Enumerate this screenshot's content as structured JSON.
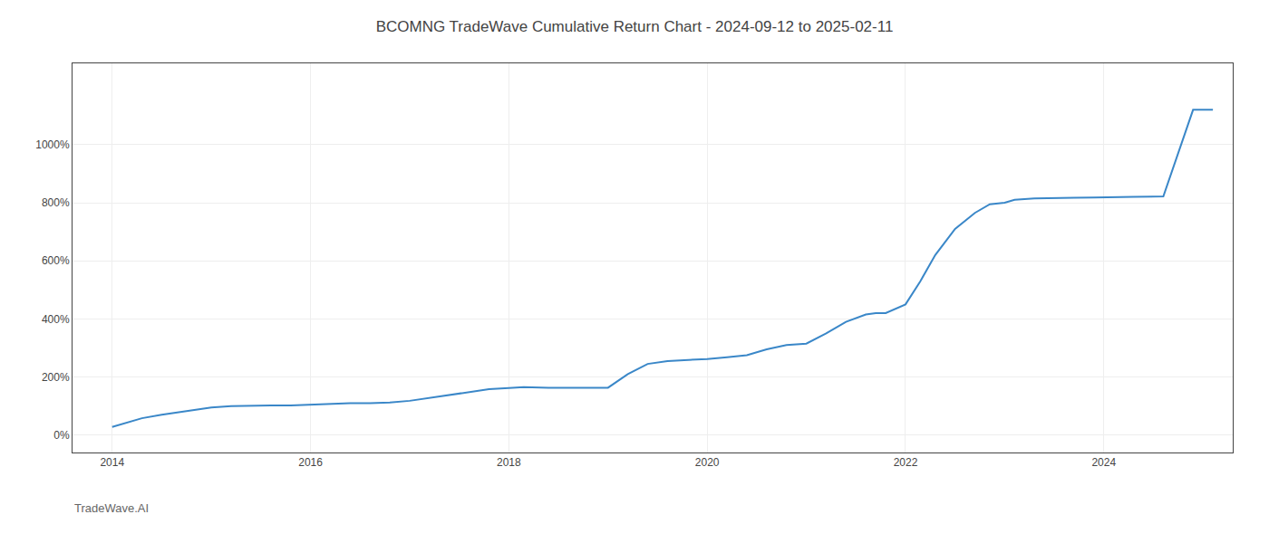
{
  "chart_data": {
    "type": "line",
    "title": "BCOMNG TradeWave Cumulative Return Chart - 2024-09-12 to 2025-02-11",
    "annotations": [
      "TradeWave.AI"
    ],
    "x": [
      2014.0,
      2014.15,
      2014.3,
      2014.5,
      2014.7,
      2015.0,
      2015.2,
      2015.4,
      2015.6,
      2015.8,
      2016.0,
      2016.2,
      2016.4,
      2016.6,
      2016.8,
      2017.0,
      2017.2,
      2017.4,
      2017.6,
      2017.8,
      2018.0,
      2018.15,
      2018.4,
      2018.7,
      2019.0,
      2019.2,
      2019.4,
      2019.6,
      2019.8,
      2020.0,
      2020.2,
      2020.4,
      2020.6,
      2020.8,
      2021.0,
      2021.2,
      2021.4,
      2021.6,
      2021.7,
      2021.8,
      2022.0,
      2022.15,
      2022.3,
      2022.5,
      2022.7,
      2022.85,
      2023.0,
      2023.1,
      2023.3,
      2023.5,
      2023.7,
      2023.9,
      2024.0,
      2024.3,
      2024.6,
      2024.9,
      2025.1
    ],
    "values": [
      28,
      42,
      58,
      70,
      80,
      95,
      100,
      102,
      102,
      102,
      105,
      108,
      110,
      110,
      112,
      118,
      128,
      140,
      150,
      158,
      162,
      165,
      163,
      162,
      163,
      210,
      245,
      255,
      258,
      262,
      268,
      275,
      295,
      310,
      315,
      350,
      390,
      415,
      420,
      420,
      450,
      530,
      620,
      710,
      765,
      795,
      800,
      810,
      815,
      815,
      817,
      818,
      818,
      820,
      822,
      1120,
      1120
    ],
    "color": "#3a87c8",
    "xlim": [
      2013.6,
      2025.3
    ],
    "xticks": [
      2014,
      2016,
      2018,
      2020,
      2022,
      2024
    ],
    "ylim": [
      -60,
      1280
    ],
    "yticks": [
      {
        "value": 0,
        "label": "0%"
      },
      {
        "value": 200,
        "label": "200%"
      },
      {
        "value": 400,
        "label": "400%"
      },
      {
        "value": 600,
        "label": "600%"
      },
      {
        "value": 800,
        "label": "800%"
      },
      {
        "value": 1000,
        "label": "1000%"
      }
    ],
    "grid": true
  }
}
